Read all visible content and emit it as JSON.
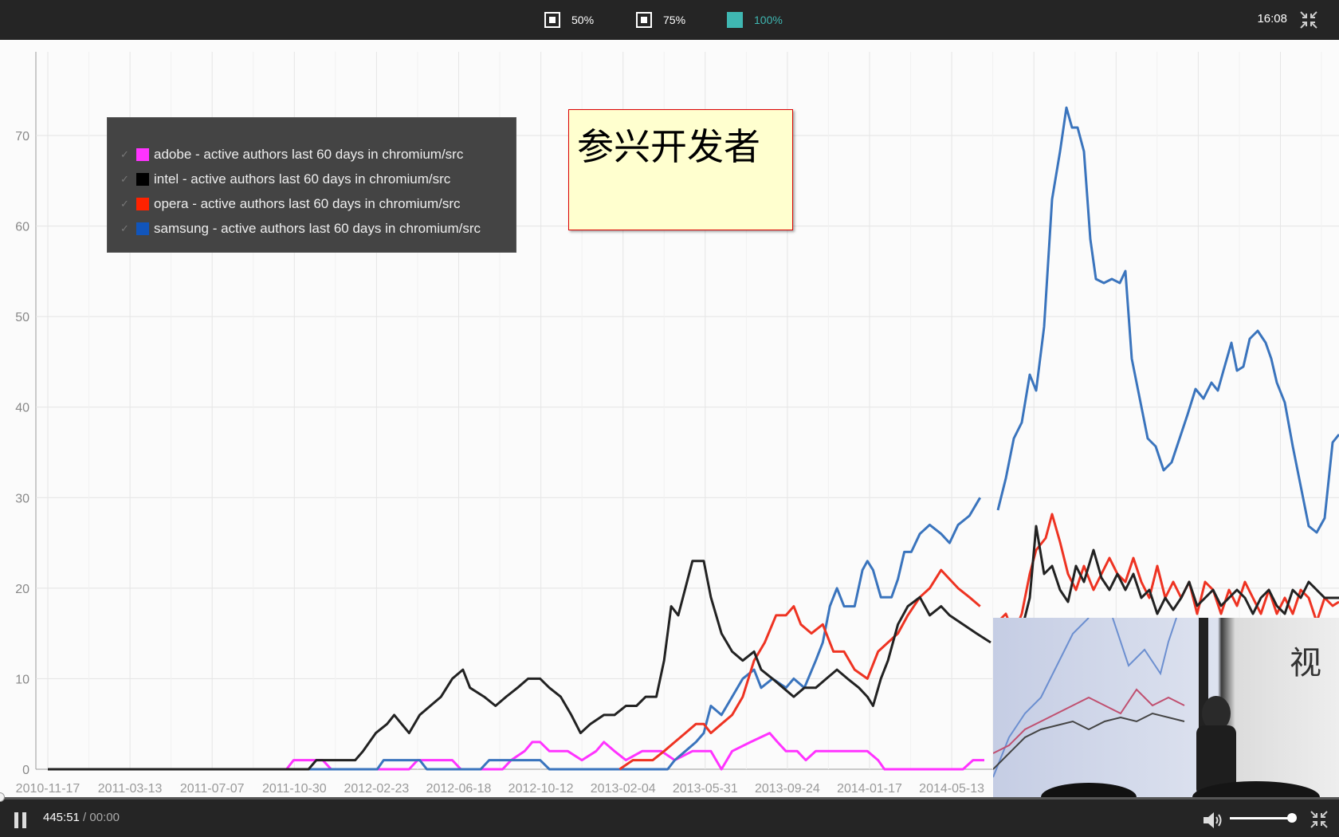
{
  "topbar": {
    "zoom_options": [
      {
        "label": "50%",
        "active": false
      },
      {
        "label": "75%",
        "active": false
      },
      {
        "label": "100%",
        "active": true
      }
    ],
    "clock": "16:08",
    "exit_icon": "exit-fullscreen-icon",
    "accent_color": "#3fb7b2"
  },
  "note": {
    "text": "参兴开发者"
  },
  "player": {
    "current_time": "445:51",
    "separator": " / ",
    "total_time": "00:00",
    "volume": 0.9,
    "progress": 0.0
  },
  "chart_data": {
    "type": "line",
    "title": "",
    "xlabel": "",
    "ylabel": "",
    "ylim": [
      0,
      75
    ],
    "yticks": [
      0,
      10,
      20,
      30,
      40,
      50,
      60,
      70
    ],
    "x_tick_labels": [
      "2010-11-17",
      "2011-03-13",
      "2011-07-07",
      "2011-10-30",
      "2012-02-23",
      "2012-06-18",
      "2012-10-12",
      "2013-02-04",
      "2013-05-31",
      "2013-09-24",
      "2014-01-17",
      "2014-05-13"
    ],
    "grid": true,
    "legend_position": "top-left",
    "series": [
      {
        "name": "adobe - active authors last 60 days in chromium/src",
        "color": "#ff33ff",
        "points": [
          [
            "2010-11-17",
            0
          ],
          [
            "2011-10-20",
            0
          ],
          [
            "2011-10-30",
            1
          ],
          [
            "2011-12-10",
            1
          ],
          [
            "2011-12-22",
            0
          ],
          [
            "2012-04-10",
            0
          ],
          [
            "2012-04-22",
            1
          ],
          [
            "2012-06-10",
            1
          ],
          [
            "2012-06-22",
            0
          ],
          [
            "2012-08-20",
            0
          ],
          [
            "2012-09-01",
            1
          ],
          [
            "2012-09-20",
            2
          ],
          [
            "2012-10-01",
            3
          ],
          [
            "2012-10-12",
            3
          ],
          [
            "2012-10-25",
            2
          ],
          [
            "2012-11-20",
            2
          ],
          [
            "2012-12-10",
            1
          ],
          [
            "2012-12-30",
            2
          ],
          [
            "2013-01-10",
            3
          ],
          [
            "2013-01-25",
            2
          ],
          [
            "2013-02-10",
            1
          ],
          [
            "2013-03-05",
            2
          ],
          [
            "2013-04-01",
            2
          ],
          [
            "2013-04-20",
            1
          ],
          [
            "2013-05-15",
            2
          ],
          [
            "2013-06-10",
            2
          ],
          [
            "2013-06-25",
            0
          ],
          [
            "2013-07-10",
            2
          ],
          [
            "2013-08-05",
            3
          ],
          [
            "2013-09-01",
            4
          ],
          [
            "2013-09-12",
            3
          ],
          [
            "2013-09-24",
            2
          ],
          [
            "2013-10-10",
            2
          ],
          [
            "2013-10-22",
            1
          ],
          [
            "2013-11-05",
            2
          ],
          [
            "2013-12-01",
            2
          ],
          [
            "2014-01-17",
            2
          ],
          [
            "2014-02-01",
            1
          ],
          [
            "2014-02-10",
            0
          ],
          [
            "2014-06-01",
            0
          ],
          [
            "2014-06-15",
            1
          ],
          [
            "2014-07-01",
            1
          ]
        ]
      },
      {
        "name": "intel - active authors last 60 days in chromium/src",
        "color": "#222222",
        "points": [
          [
            "2010-11-17",
            0
          ],
          [
            "2011-11-20",
            0
          ],
          [
            "2011-12-01",
            1
          ],
          [
            "2012-01-25",
            1
          ],
          [
            "2012-02-05",
            2
          ],
          [
            "2012-02-23",
            4
          ],
          [
            "2012-03-10",
            5
          ],
          [
            "2012-03-20",
            6
          ],
          [
            "2012-04-10",
            4
          ],
          [
            "2012-04-25",
            6
          ],
          [
            "2012-05-10",
            7
          ],
          [
            "2012-05-25",
            8
          ],
          [
            "2012-06-10",
            10
          ],
          [
            "2012-06-25",
            11
          ],
          [
            "2012-07-05",
            9
          ],
          [
            "2012-07-25",
            8
          ],
          [
            "2012-08-10",
            7
          ],
          [
            "2012-08-25",
            8
          ],
          [
            "2012-09-10",
            9
          ],
          [
            "2012-09-25",
            10
          ],
          [
            "2012-10-12",
            10
          ],
          [
            "2012-10-25",
            9
          ],
          [
            "2012-11-10",
            8
          ],
          [
            "2012-11-25",
            6
          ],
          [
            "2012-12-08",
            4
          ],
          [
            "2012-12-22",
            5
          ],
          [
            "2013-01-10",
            6
          ],
          [
            "2013-01-25",
            6
          ],
          [
            "2013-02-10",
            7
          ],
          [
            "2013-02-25",
            7
          ],
          [
            "2013-03-10",
            8
          ],
          [
            "2013-03-25",
            8
          ],
          [
            "2013-04-05",
            12
          ],
          [
            "2013-04-15",
            18
          ],
          [
            "2013-04-25",
            17
          ],
          [
            "2013-05-05",
            20
          ],
          [
            "2013-05-15",
            23
          ],
          [
            "2013-05-31",
            23
          ],
          [
            "2013-06-10",
            19
          ],
          [
            "2013-06-25",
            15
          ],
          [
            "2013-07-10",
            13
          ],
          [
            "2013-07-25",
            12
          ],
          [
            "2013-08-10",
            13
          ],
          [
            "2013-08-20",
            11
          ],
          [
            "2013-09-05",
            10
          ],
          [
            "2013-09-20",
            9
          ],
          [
            "2013-10-05",
            8
          ],
          [
            "2013-10-20",
            9
          ],
          [
            "2013-11-05",
            9
          ],
          [
            "2013-11-20",
            10
          ],
          [
            "2013-12-05",
            11
          ],
          [
            "2013-12-20",
            10
          ],
          [
            "2014-01-05",
            9
          ],
          [
            "2014-01-17",
            8
          ],
          [
            "2014-01-25",
            7
          ],
          [
            "2014-02-05",
            10
          ],
          [
            "2014-02-15",
            12
          ],
          [
            "2014-03-01",
            16
          ],
          [
            "2014-03-15",
            18
          ],
          [
            "2014-04-01",
            19
          ],
          [
            "2014-04-15",
            17
          ],
          [
            "2014-05-01",
            18
          ],
          [
            "2014-05-13",
            17
          ],
          [
            "2014-06-01",
            16
          ],
          [
            "2014-06-20",
            15
          ],
          [
            "2014-07-10",
            14
          ]
        ]
      },
      {
        "name": "opera - active authors last 60 days in chromium/src",
        "color": "#ee3322",
        "points": [
          [
            "2013-02-01",
            0
          ],
          [
            "2013-02-20",
            1
          ],
          [
            "2013-03-20",
            1
          ],
          [
            "2013-04-05",
            2
          ],
          [
            "2013-04-20",
            3
          ],
          [
            "2013-05-05",
            4
          ],
          [
            "2013-05-20",
            5
          ],
          [
            "2013-05-31",
            5
          ],
          [
            "2013-06-10",
            4
          ],
          [
            "2013-06-25",
            5
          ],
          [
            "2013-07-10",
            6
          ],
          [
            "2013-07-25",
            8
          ],
          [
            "2013-08-10",
            12
          ],
          [
            "2013-08-25",
            14
          ],
          [
            "2013-09-10",
            17
          ],
          [
            "2013-09-24",
            17
          ],
          [
            "2013-10-05",
            18
          ],
          [
            "2013-10-15",
            16
          ],
          [
            "2013-10-30",
            15
          ],
          [
            "2013-11-15",
            16
          ],
          [
            "2013-11-30",
            13
          ],
          [
            "2013-12-15",
            13
          ],
          [
            "2013-12-30",
            11
          ],
          [
            "2014-01-17",
            10
          ],
          [
            "2014-02-01",
            13
          ],
          [
            "2014-02-15",
            14
          ],
          [
            "2014-03-01",
            15
          ],
          [
            "2014-03-15",
            17
          ],
          [
            "2014-04-01",
            19
          ],
          [
            "2014-04-15",
            20
          ],
          [
            "2014-05-01",
            22
          ],
          [
            "2014-05-13",
            21
          ],
          [
            "2014-05-25",
            20
          ],
          [
            "2014-06-10",
            19
          ],
          [
            "2014-06-25",
            18
          ]
        ]
      },
      {
        "name": "samsung - active authors last 60 days in chromium/src",
        "color": "#3a74bd",
        "points": [
          [
            "2010-11-17",
            0
          ],
          [
            "2012-02-25",
            0
          ],
          [
            "2012-03-05",
            1
          ],
          [
            "2012-04-25",
            1
          ],
          [
            "2012-05-05",
            0
          ],
          [
            "2012-07-20",
            0
          ],
          [
            "2012-08-01",
            1
          ],
          [
            "2012-10-12",
            1
          ],
          [
            "2012-10-25",
            0
          ],
          [
            "2013-04-10",
            0
          ],
          [
            "2013-04-20",
            1
          ],
          [
            "2013-05-05",
            2
          ],
          [
            "2013-05-20",
            3
          ],
          [
            "2013-05-31",
            4
          ],
          [
            "2013-06-10",
            7
          ],
          [
            "2013-06-25",
            6
          ],
          [
            "2013-07-10",
            8
          ],
          [
            "2013-07-25",
            10
          ],
          [
            "2013-08-10",
            11
          ],
          [
            "2013-08-20",
            9
          ],
          [
            "2013-09-05",
            10
          ],
          [
            "2013-09-24",
            9
          ],
          [
            "2013-10-05",
            10
          ],
          [
            "2013-10-20",
            9
          ],
          [
            "2013-11-05",
            12
          ],
          [
            "2013-11-15",
            14
          ],
          [
            "2013-11-25",
            18
          ],
          [
            "2013-12-05",
            20
          ],
          [
            "2013-12-15",
            18
          ],
          [
            "2013-12-30",
            18
          ],
          [
            "2014-01-10",
            22
          ],
          [
            "2014-01-17",
            23
          ],
          [
            "2014-01-25",
            22
          ],
          [
            "2014-02-05",
            19
          ],
          [
            "2014-02-20",
            19
          ],
          [
            "2014-03-01",
            21
          ],
          [
            "2014-03-10",
            24
          ],
          [
            "2014-03-20",
            24
          ],
          [
            "2014-04-01",
            26
          ],
          [
            "2014-04-15",
            27
          ],
          [
            "2014-05-01",
            26
          ],
          [
            "2014-05-13",
            25
          ],
          [
            "2014-05-25",
            27
          ],
          [
            "2014-06-10",
            28
          ],
          [
            "2014-06-25",
            30
          ]
        ]
      }
    ]
  }
}
